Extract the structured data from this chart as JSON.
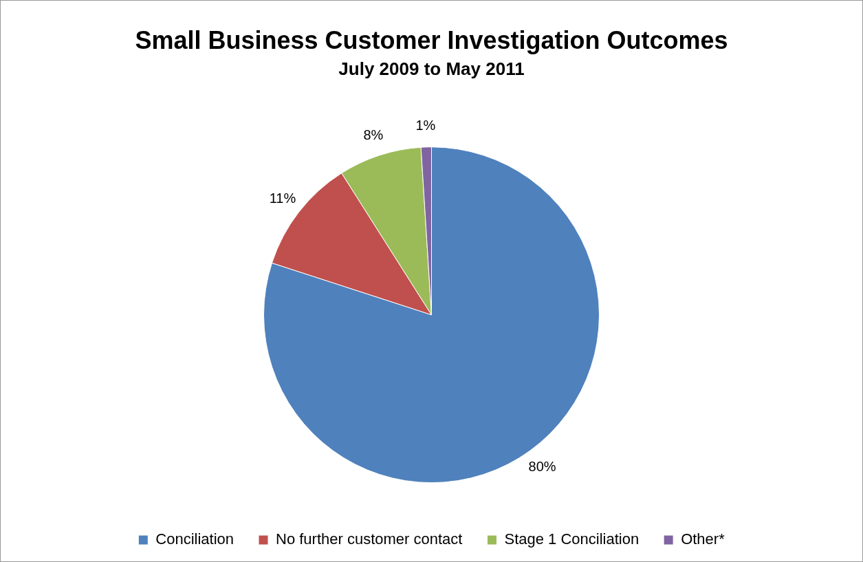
{
  "chart_data": {
    "type": "pie",
    "title": "Small Business Customer Investigation Outcomes",
    "subtitle": "July 2009 to May 2011",
    "categories": [
      "Conciliation",
      "No further customer contact",
      "Stage 1 Conciliation",
      "Other*"
    ],
    "values": [
      80,
      11,
      8,
      1
    ],
    "colors": [
      "#4f81bd",
      "#c0504d",
      "#9bbb59",
      "#8064a2"
    ],
    "value_labels": [
      "80%",
      "11%",
      "8%",
      "1%"
    ],
    "legend": "bottom"
  }
}
